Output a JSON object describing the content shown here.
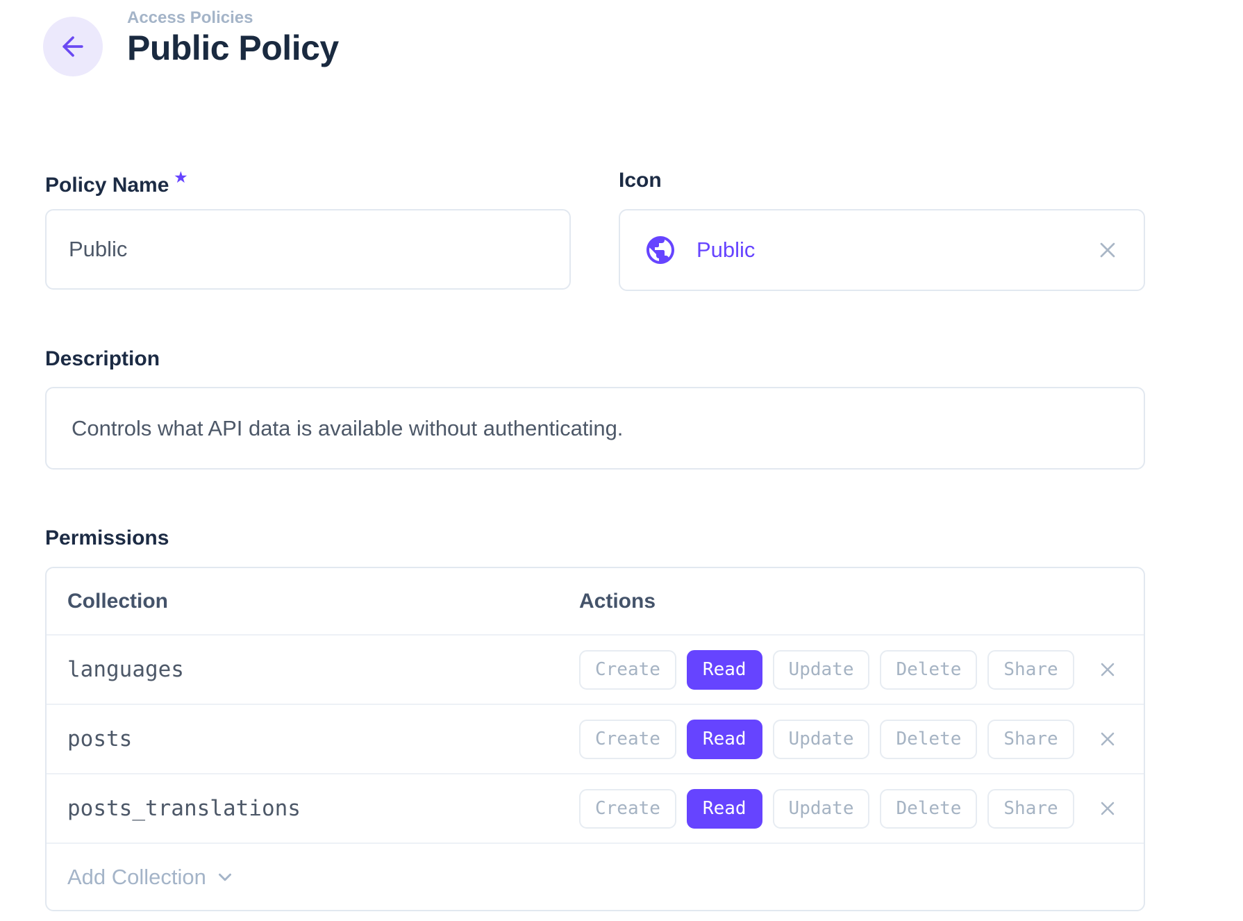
{
  "accent_color": "#6644ff",
  "header": {
    "breadcrumb": "Access Policies",
    "title": "Public Policy"
  },
  "form": {
    "policy_name": {
      "label": "Policy Name",
      "required_marker": "★",
      "value": "Public"
    },
    "icon_field": {
      "label": "Icon",
      "value": "Public",
      "icon": "globe-icon",
      "clear_icon": "x-icon"
    },
    "description": {
      "label": "Description",
      "value": "Controls what API data is available without authenticating."
    }
  },
  "permissions": {
    "label": "Permissions",
    "columns": {
      "collection": "Collection",
      "actions": "Actions"
    },
    "actions": [
      "Create",
      "Read",
      "Update",
      "Delete",
      "Share"
    ],
    "rows": [
      {
        "collection": "languages",
        "active": [
          "Read"
        ]
      },
      {
        "collection": "posts",
        "active": [
          "Read"
        ]
      },
      {
        "collection": "posts_translations",
        "active": [
          "Read"
        ]
      }
    ],
    "add_collection_label": "Add Collection"
  }
}
